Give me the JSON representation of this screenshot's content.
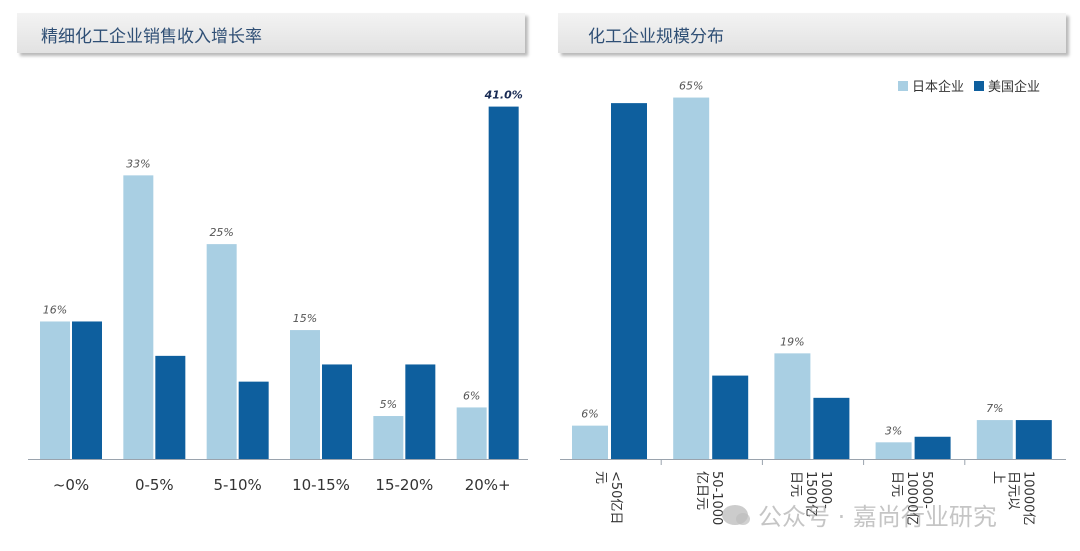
{
  "colors": {
    "japan": "#a9cfe3",
    "usa": "#0e5f9e",
    "axis": "#9aa3ad",
    "label": "#555555",
    "header_text": "#2f4f75"
  },
  "left_header": {
    "title": "精细化工企业销售收入增长率"
  },
  "right_header": {
    "title": "化工企业规模分布"
  },
  "legend": {
    "japan_label": "日本企业",
    "usa_label": "美国企业"
  },
  "watermark": {
    "text": "公众号 · 嘉尚行业研究"
  },
  "chart_data": [
    {
      "type": "bar",
      "title": "精细化工企业销售收入增长率",
      "categories": [
        "~0%",
        "0-5%",
        "5-10%",
        "10-15%",
        "15-20%",
        "20%+"
      ],
      "series": [
        {
          "values": [
            16,
            33,
            25,
            15,
            5,
            6
          ],
          "labels": [
            "16%",
            "33%",
            "25%",
            "15%",
            "5%",
            "6%"
          ]
        },
        {
          "values": [
            16,
            12,
            9,
            11,
            11,
            41
          ],
          "labels": [
            "",
            "",
            "",
            "",
            "",
            "41.0%"
          ]
        }
      ],
      "ylim": [
        0,
        42
      ],
      "grid": false
    },
    {
      "type": "bar",
      "title": "化工企业规模分布",
      "categories": [
        [
          "<50亿日",
          "元"
        ],
        [
          "50-1000",
          "亿日元"
        ],
        [
          "1000-",
          "1500亿",
          "日元"
        ],
        [
          "5000-",
          "10000亿",
          "日元"
        ],
        [
          "10000亿",
          "日元以",
          "上"
        ]
      ],
      "series": [
        {
          "name": "日本企业",
          "values": [
            6,
            65,
            19,
            3,
            7
          ],
          "labels": [
            "6%",
            "65%",
            "19%",
            "3%",
            "7%"
          ]
        },
        {
          "name": "美国企业",
          "values": [
            64,
            15,
            11,
            4,
            7
          ],
          "labels": [
            "",
            "",
            "",
            "",
            ""
          ]
        }
      ],
      "ylim": [
        0,
        66
      ],
      "legend": "top-right",
      "grid": false
    }
  ]
}
